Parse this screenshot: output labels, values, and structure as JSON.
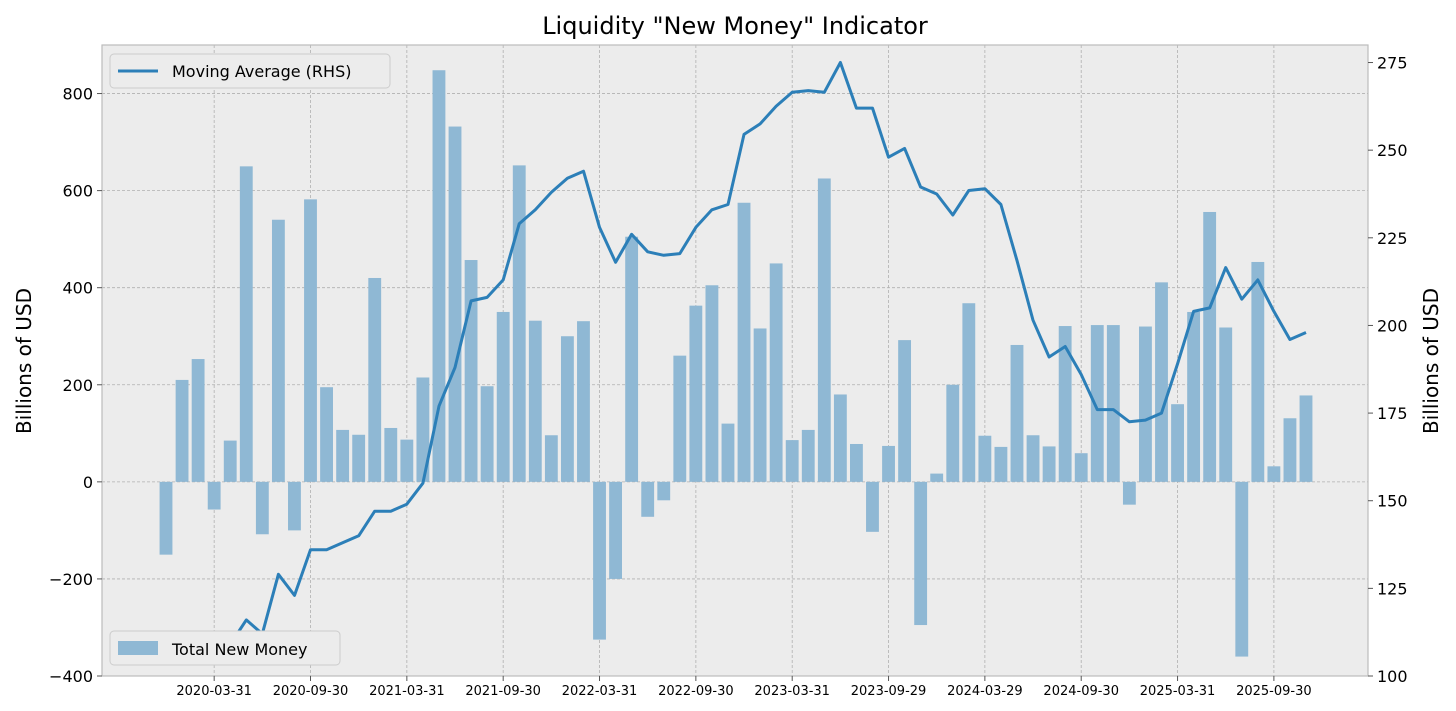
{
  "chart_data": {
    "type": "bar+line",
    "title": "Liquidity \"New Money\" Indicator",
    "ylabel_left": "Billions of USD",
    "ylabel_right": "Billions of USD",
    "ylim_left": [
      -400,
      900
    ],
    "ylim_right": [
      100,
      280
    ],
    "yticks_left": [
      -400,
      -200,
      0,
      200,
      400,
      600,
      800
    ],
    "yticks_left_labels": [
      "−400",
      "−200",
      "0",
      "200",
      "400",
      "600",
      "800"
    ],
    "yticks_right": [
      100,
      125,
      150,
      175,
      200,
      225,
      250,
      275
    ],
    "yticks_right_labels": [
      "100",
      "125",
      "150",
      "175",
      "200",
      "225",
      "250",
      "275"
    ],
    "xticks": [
      "2020-03-31",
      "2020-09-30",
      "2021-03-31",
      "2021-09-30",
      "2022-03-31",
      "2022-09-30",
      "2023-03-31",
      "2023-09-29",
      "2024-03-29",
      "2024-09-30",
      "2025-03-31",
      "2025-09-30"
    ],
    "grid": true,
    "legend_line_position": "top-left",
    "legend_bar_position": "bottom-left",
    "series": [
      {
        "name": "Total New Money",
        "kind": "bar",
        "axis": "left",
        "color": "#8fb8d4",
        "values": [
          -150,
          210,
          253,
          -57,
          85,
          650,
          -108,
          540,
          -100,
          582,
          195,
          107,
          97,
          420,
          111,
          87,
          215,
          848,
          732,
          457,
          197,
          350,
          652,
          332,
          96,
          300,
          331,
          -325,
          -200,
          505,
          -72,
          -38,
          260,
          363,
          405,
          120,
          575,
          316,
          450,
          86,
          107,
          625,
          180,
          78,
          -103,
          74,
          292,
          -295,
          17,
          200,
          368,
          95,
          72,
          282,
          96,
          73,
          321,
          59,
          323,
          323,
          -47,
          320,
          411,
          160,
          350,
          556,
          318,
          -360,
          453,
          32,
          131,
          178
        ]
      },
      {
        "name": "Moving Average (RHS)",
        "kind": "line",
        "axis": "right",
        "color": "#2c7fb8",
        "values": [
          106,
          109,
          111,
          109,
          109,
          116,
          112,
          129,
          123,
          136,
          136,
          138,
          140,
          147,
          147,
          149,
          155,
          177,
          188,
          207,
          208,
          213,
          229,
          233,
          238,
          242,
          244,
          228,
          218,
          226,
          221,
          220,
          220.5,
          228,
          233,
          234.5,
          254.5,
          257.5,
          262.5,
          266.5,
          267,
          266.5,
          275,
          262,
          262,
          248,
          250.5,
          239.5,
          237.5,
          231.5,
          238.5,
          239,
          234.5,
          218.5,
          201.5,
          191,
          194,
          186,
          176,
          176,
          172.5,
          173,
          175,
          189,
          204,
          205,
          216.5,
          207.5,
          213,
          204,
          196,
          198
        ]
      }
    ]
  }
}
